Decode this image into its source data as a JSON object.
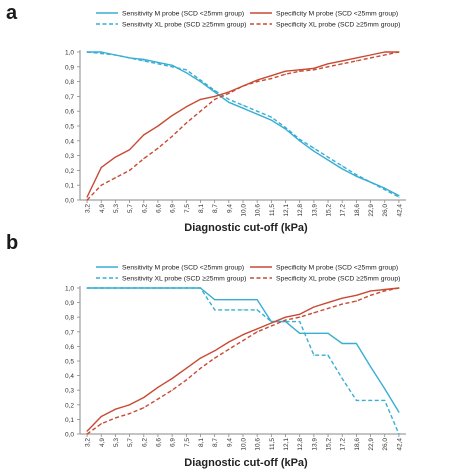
{
  "colors": {
    "blue": "#38aed4",
    "red": "#c84a33",
    "axis": "#8a8a8a",
    "grid": "#d9d9d9"
  },
  "x_ticks": [
    "3,2",
    "4,9",
    "5,3",
    "5,7",
    "6,2",
    "6,6",
    "6,9",
    "7,5",
    "8,1",
    "8,7",
    "9,4",
    "10,0",
    "10,6",
    "11,5",
    "12,1",
    "12,8",
    "13,9",
    "15,2",
    "17,2",
    "18,6",
    "22,9",
    "26,0",
    "42,4"
  ],
  "y_ticks": [
    "0,0",
    "0,1",
    "0,2",
    "0,3",
    "0,4",
    "0,5",
    "0,6",
    "0,7",
    "0,8",
    "0,9",
    "1,0"
  ],
  "chart_data": [
    {
      "panel": "a",
      "type": "line",
      "xlabel": "Diagnostic cut-off (kPa)",
      "ylim": [
        0,
        1
      ],
      "grid": false,
      "legend_position": "top",
      "series": [
        {
          "name": "Sensitivity M probe (SCD <25mm group)",
          "color": "blue",
          "style": "solid",
          "values": [
            1.0,
            1.0,
            0.98,
            0.96,
            0.95,
            0.93,
            0.91,
            0.86,
            0.8,
            0.73,
            0.66,
            0.62,
            0.58,
            0.54,
            0.48,
            0.4,
            0.33,
            0.27,
            0.21,
            0.16,
            0.12,
            0.08,
            0.03
          ]
        },
        {
          "name": "Sensitivity XL probe (SCD ≥25mm group)",
          "color": "blue",
          "style": "dashed",
          "values": [
            1.0,
            0.99,
            0.98,
            0.96,
            0.94,
            0.92,
            0.9,
            0.88,
            0.81,
            0.74,
            0.68,
            0.64,
            0.6,
            0.56,
            0.49,
            0.41,
            0.35,
            0.29,
            0.23,
            0.17,
            0.12,
            0.07,
            0.02
          ]
        },
        {
          "name": "Specificity M probe (SCD <25mm group)",
          "color": "red",
          "style": "solid",
          "values": [
            0.02,
            0.22,
            0.29,
            0.34,
            0.44,
            0.5,
            0.57,
            0.63,
            0.68,
            0.7,
            0.73,
            0.77,
            0.81,
            0.84,
            0.87,
            0.88,
            0.89,
            0.92,
            0.94,
            0.96,
            0.98,
            1.0,
            1.0
          ]
        },
        {
          "name": "Specificity XL probe (SCD ≥25mm group)",
          "color": "red",
          "style": "dashed",
          "values": [
            0.0,
            0.1,
            0.15,
            0.2,
            0.28,
            0.35,
            0.43,
            0.52,
            0.6,
            0.68,
            0.72,
            0.77,
            0.8,
            0.82,
            0.85,
            0.87,
            0.88,
            0.9,
            0.92,
            0.94,
            0.96,
            0.98,
            1.0
          ]
        }
      ]
    },
    {
      "panel": "b",
      "type": "line",
      "xlabel": "Diagnostic cut-off (kPa)",
      "ylim": [
        0,
        1
      ],
      "grid": false,
      "legend_position": "top",
      "series": [
        {
          "name": "Sensitivity M probe (SCD <25mm group)",
          "color": "blue",
          "style": "solid",
          "values": [
            1.0,
            1.0,
            1.0,
            1.0,
            1.0,
            1.0,
            1.0,
            1.0,
            1.0,
            0.92,
            0.92,
            0.92,
            0.92,
            0.77,
            0.77,
            0.69,
            0.69,
            0.69,
            0.62,
            0.62,
            0.46,
            0.31,
            0.15
          ]
        },
        {
          "name": "Sensitivity XL probe (SCD ≥25mm group)",
          "color": "blue",
          "style": "dashed",
          "values": [
            1.0,
            1.0,
            1.0,
            1.0,
            1.0,
            1.0,
            1.0,
            1.0,
            1.0,
            0.85,
            0.85,
            0.85,
            0.85,
            0.77,
            0.77,
            0.77,
            0.54,
            0.54,
            0.38,
            0.23,
            0.23,
            0.23,
            0.0
          ]
        },
        {
          "name": "Specificity M probe (SCD <25mm group)",
          "color": "red",
          "style": "solid",
          "values": [
            0.02,
            0.12,
            0.17,
            0.2,
            0.25,
            0.32,
            0.38,
            0.45,
            0.52,
            0.57,
            0.63,
            0.68,
            0.72,
            0.76,
            0.8,
            0.82,
            0.87,
            0.9,
            0.93,
            0.95,
            0.98,
            0.99,
            1.0
          ]
        },
        {
          "name": "Specificity XL probe (SCD ≥25mm group)",
          "color": "red",
          "style": "dashed",
          "values": [
            0.0,
            0.07,
            0.11,
            0.14,
            0.18,
            0.24,
            0.3,
            0.37,
            0.45,
            0.52,
            0.58,
            0.64,
            0.7,
            0.74,
            0.78,
            0.8,
            0.83,
            0.86,
            0.89,
            0.91,
            0.95,
            0.98,
            1.0
          ]
        }
      ]
    }
  ]
}
